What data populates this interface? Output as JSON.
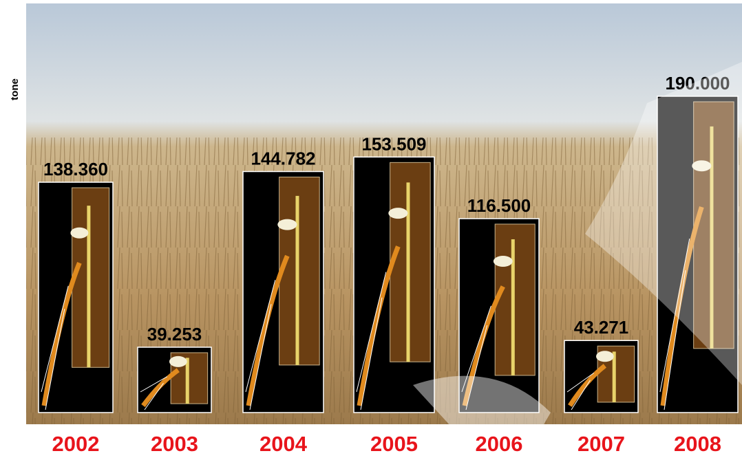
{
  "chart_data": {
    "type": "bar",
    "y_label": "tone",
    "categories": [
      "2002",
      "2003",
      "2004",
      "2005",
      "2006",
      "2007",
      "2008"
    ],
    "values": [
      138360,
      39253,
      144782,
      153509,
      116500,
      43271,
      190000
    ],
    "value_labels": [
      "138.360",
      "39.253",
      "144.782",
      "153.509",
      "116.500",
      "43.271",
      "190.000"
    ],
    "color": "#000000",
    "category_color": "#e8141b"
  }
}
